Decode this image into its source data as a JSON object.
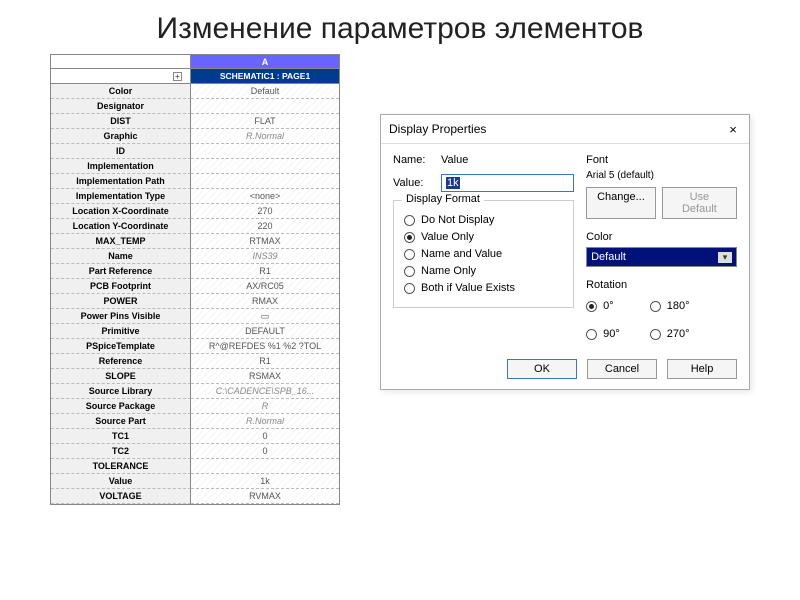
{
  "slide": {
    "title": "Изменение параметров элементов"
  },
  "table": {
    "col_header": "A",
    "sch_expand": "+",
    "sch_label": "SCHEMATIC1 : PAGE1",
    "rows": [
      {
        "name": "Color",
        "value": "Default"
      },
      {
        "name": "Designator",
        "value": ""
      },
      {
        "name": "DIST",
        "value": "FLAT"
      },
      {
        "name": "Graphic",
        "value": "R.Normal",
        "italic": true
      },
      {
        "name": "ID",
        "value": ""
      },
      {
        "name": "Implementation",
        "value": ""
      },
      {
        "name": "Implementation Path",
        "value": ""
      },
      {
        "name": "Implementation Type",
        "value": "<none>"
      },
      {
        "name": "Location X-Coordinate",
        "value": "270"
      },
      {
        "name": "Location Y-Coordinate",
        "value": "220"
      },
      {
        "name": "MAX_TEMP",
        "value": "RTMAX"
      },
      {
        "name": "Name",
        "value": "INS39",
        "italic": true
      },
      {
        "name": "Part Reference",
        "value": "R1"
      },
      {
        "name": "PCB Footprint",
        "value": "AX/RC05"
      },
      {
        "name": "POWER",
        "value": "RMAX"
      },
      {
        "name": "Power Pins Visible",
        "value": "▭"
      },
      {
        "name": "Primitive",
        "value": "DEFAULT"
      },
      {
        "name": "PSpiceTemplate",
        "value": "R^@REFDES %1 %2 ?TOL"
      },
      {
        "name": "Reference",
        "value": "R1"
      },
      {
        "name": "SLOPE",
        "value": "RSMAX"
      },
      {
        "name": "Source Library",
        "value": "C:\\CADENCE\\SPB_16...",
        "italic": true
      },
      {
        "name": "Source Package",
        "value": "R",
        "italic": true
      },
      {
        "name": "Source Part",
        "value": "R.Normal",
        "italic": true
      },
      {
        "name": "TC1",
        "value": "0"
      },
      {
        "name": "TC2",
        "value": "0"
      },
      {
        "name": "TOLERANCE",
        "value": ""
      },
      {
        "name": "Value",
        "value": "1k"
      },
      {
        "name": "VOLTAGE",
        "value": "RVMAX"
      }
    ]
  },
  "dialog": {
    "title": "Display Properties",
    "name_label": "Name:",
    "name_value": "Value",
    "value_label": "Value:",
    "value_input": "1k",
    "format_legend": "Display Format",
    "format_options": [
      {
        "label": "Do Not Display",
        "checked": false
      },
      {
        "label": "Value Only",
        "checked": true
      },
      {
        "label": "Name and Value",
        "checked": false
      },
      {
        "label": "Name Only",
        "checked": false
      },
      {
        "label": "Both if Value Exists",
        "checked": false
      }
    ],
    "font_label": "Font",
    "font_value": "Arial 5 (default)",
    "change_btn": "Change...",
    "usedefault_btn": "Use Default",
    "color_label": "Color",
    "color_value": "Default",
    "rotation_label": "Rotation",
    "rotation_options_left": [
      {
        "label": "0°",
        "checked": true
      },
      {
        "label": "90°",
        "checked": false
      }
    ],
    "rotation_options_right": [
      {
        "label": "180°",
        "checked": false
      },
      {
        "label": "270°",
        "checked": false
      }
    ],
    "ok": "OK",
    "cancel": "Cancel",
    "help": "Help"
  }
}
